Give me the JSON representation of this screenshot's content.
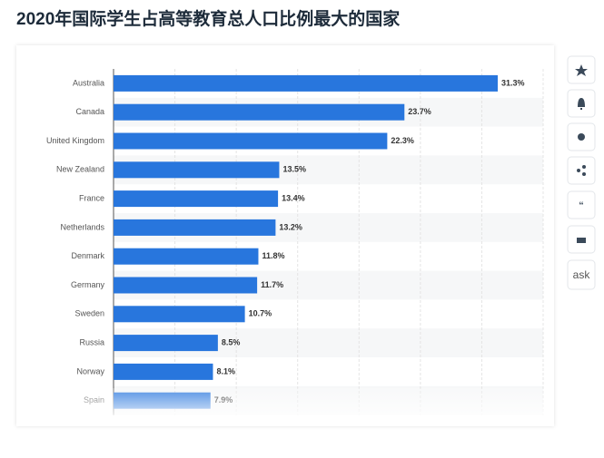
{
  "chart_data": {
    "type": "bar",
    "orientation": "horizontal",
    "title": "2020年国际学生占高等教育总人口比例最大的国家",
    "categories": [
      "Australia",
      "Canada",
      "United Kingdom",
      "New Zealand",
      "France",
      "Netherlands",
      "Denmark",
      "Germany",
      "Sweden",
      "Russia",
      "Norway",
      "Spain"
    ],
    "values": [
      31.3,
      23.7,
      22.3,
      13.5,
      13.4,
      13.2,
      11.8,
      11.7,
      10.7,
      8.5,
      8.1,
      7.9
    ],
    "value_labels": [
      "31.3%",
      "23.7%",
      "22.3%",
      "13.5%",
      "13.4%",
      "13.2%",
      "11.8%",
      "11.7%",
      "10.7%",
      "8.5%",
      "8.1%",
      "7.9%"
    ],
    "color": "#2876dd",
    "xlim": [
      0,
      35
    ],
    "xticks": [
      0,
      5,
      10,
      15,
      20,
      25,
      30,
      35
    ],
    "grid": true
  },
  "sidebar": {
    "ask_label": "ask"
  }
}
